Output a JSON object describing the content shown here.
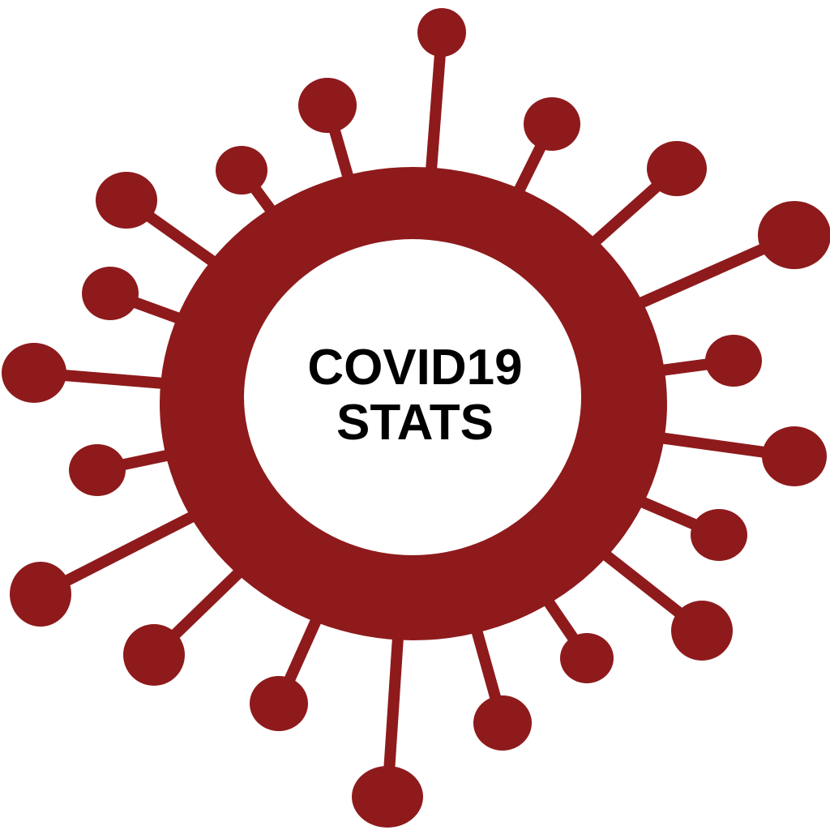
{
  "logo": {
    "line1": "COVID19",
    "line2": "STATS",
    "icon": "coronavirus-icon",
    "colors": {
      "virus": "#8e1a1c",
      "center": "#ffffff",
      "text": "#000000"
    }
  }
}
